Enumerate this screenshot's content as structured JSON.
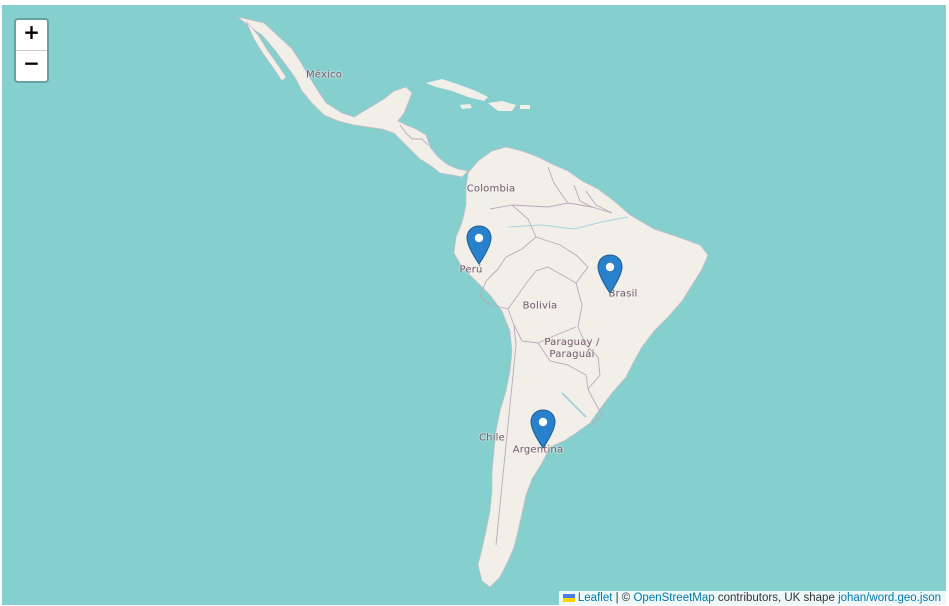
{
  "zoom": {
    "in_label": "+",
    "out_label": "−"
  },
  "countries": [
    {
      "id": "mexico",
      "label": "México"
    },
    {
      "id": "colombia",
      "label": "Colombia"
    },
    {
      "id": "peru",
      "label": "Perú"
    },
    {
      "id": "brasil",
      "label": "Brasil"
    },
    {
      "id": "bolivia",
      "label": "Bolivia"
    },
    {
      "id": "paraguay",
      "label": "Paraguay / Paraguái"
    },
    {
      "id": "chile",
      "label": "Chile"
    },
    {
      "id": "argentina",
      "label": "Argentina"
    }
  ],
  "markers": [
    {
      "id": "marker-peru",
      "country": "Perú"
    },
    {
      "id": "marker-brasil",
      "country": "Brasil"
    },
    {
      "id": "marker-argentina",
      "country": "Argentina"
    }
  ],
  "attribution": {
    "leaflet": "Leaflet",
    "sep1": "| ©",
    "osm": "OpenStreetMap",
    "text": "contributors, UK shape",
    "geo_link": "johan/word.geo.json"
  },
  "colors": {
    "water": "#86cfcf",
    "land": "#f2efe9",
    "border": "#b9a9b9",
    "marker": "#2a81cb",
    "link": "#0078a8"
  }
}
